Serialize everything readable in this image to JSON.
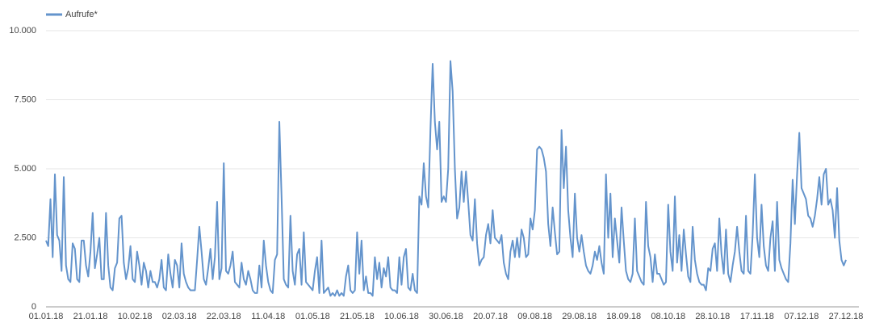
{
  "chart_data": {
    "type": "line",
    "ylim": [
      0,
      10000
    ],
    "yticks": [
      0,
      {
        "value": 2500,
        "label": "2.500"
      },
      {
        "value": 5000,
        "label": "5.000"
      },
      {
        "value": 7500,
        "label": "7.500"
      },
      {
        "value": 10000,
        "label": "10.000"
      }
    ],
    "grid": true,
    "legend": "top-left",
    "categories": [
      "01.01.18",
      null,
      null,
      null,
      null,
      null,
      null,
      null,
      null,
      null,
      null,
      null,
      null,
      null,
      null,
      null,
      null,
      null,
      null,
      null,
      "21.01.18",
      null,
      null,
      null,
      null,
      null,
      null,
      null,
      null,
      null,
      null,
      null,
      null,
      null,
      null,
      null,
      null,
      null,
      null,
      null,
      "10.02.18",
      null,
      null,
      null,
      null,
      null,
      null,
      null,
      null,
      null,
      null,
      null,
      null,
      null,
      null,
      null,
      null,
      null,
      null,
      null,
      "02.03.18",
      null,
      null,
      null,
      null,
      null,
      null,
      null,
      null,
      null,
      null,
      null,
      null,
      null,
      null,
      null,
      null,
      null,
      null,
      null,
      "22.03.18",
      null,
      null,
      null,
      null,
      null,
      null,
      null,
      null,
      null,
      null,
      null,
      null,
      null,
      null,
      null,
      null,
      null,
      null,
      null,
      "11.04.18",
      null,
      null,
      null,
      null,
      null,
      null,
      null,
      null,
      null,
      null,
      null,
      null,
      null,
      null,
      null,
      null,
      null,
      null,
      null,
      "01.05.18",
      null,
      null,
      null,
      null,
      null,
      null,
      null,
      null,
      null,
      null,
      null,
      null,
      null,
      null,
      null,
      null,
      null,
      null,
      null,
      "21.05.18",
      null,
      null,
      null,
      null,
      null,
      null,
      null,
      null,
      null,
      null,
      null,
      null,
      null,
      null,
      null,
      null,
      null,
      null,
      null,
      "10.06.18",
      null,
      null,
      null,
      null,
      null,
      null,
      null,
      null,
      null,
      null,
      null,
      null,
      null,
      null,
      null,
      null,
      null,
      null,
      null,
      "30.06.18",
      null,
      null,
      null,
      null,
      null,
      null,
      null,
      null,
      null,
      null,
      null,
      null,
      null,
      null,
      null,
      null,
      null,
      null,
      null,
      "20.07.18",
      null,
      null,
      null,
      null,
      null,
      null,
      null,
      null,
      null,
      null,
      null,
      null,
      null,
      null,
      null,
      null,
      null,
      null,
      null,
      "09.08.18",
      null,
      null,
      null,
      null,
      null,
      null,
      null,
      null,
      null,
      null,
      null,
      null,
      null,
      null,
      null,
      null,
      null,
      null,
      null,
      "29.08.18",
      null,
      null,
      null,
      null,
      null,
      null,
      null,
      null,
      null,
      null,
      null,
      null,
      null,
      null,
      null,
      null,
      null,
      null,
      null,
      "18.09.18",
      null,
      null,
      null,
      null,
      null,
      null,
      null,
      null,
      null,
      null,
      null,
      null,
      null,
      null,
      null,
      null,
      null,
      null,
      null,
      "08.10.18",
      null,
      null,
      null,
      null,
      null,
      null,
      null,
      null,
      null,
      null,
      null,
      null,
      null,
      null,
      null,
      null,
      null,
      null,
      null,
      "28.10.18",
      null,
      null,
      null,
      null,
      null,
      null,
      null,
      null,
      null,
      null,
      null,
      null,
      null,
      null,
      null,
      null,
      null,
      null,
      null,
      "17.11.18",
      null,
      null,
      null,
      null,
      null,
      null,
      null,
      null,
      null,
      null,
      null,
      null,
      null,
      null,
      null,
      null,
      null,
      null,
      null,
      "07.12.18",
      null,
      null,
      null,
      null,
      null,
      null,
      null,
      null,
      null,
      null,
      null,
      null,
      null,
      null,
      null,
      null,
      null,
      null,
      null,
      "27.12.18"
    ],
    "series": [
      {
        "name": "Aufrufe*",
        "color": "#6494cc",
        "values": [
          2400,
          2200,
          3900,
          1800,
          4800,
          2600,
          2400,
          1300,
          4700,
          1500,
          1000,
          900,
          2300,
          2100,
          1000,
          900,
          2400,
          2400,
          1500,
          1100,
          2000,
          3400,
          1400,
          1900,
          2500,
          1000,
          1000,
          3400,
          1500,
          700,
          600,
          1400,
          1600,
          3200,
          3300,
          1600,
          1000,
          1400,
          2200,
          1000,
          900,
          2000,
          1500,
          800,
          1600,
          1300,
          700,
          1300,
          900,
          900,
          700,
          1000,
          1700,
          700,
          600,
          1900,
          1200,
          700,
          1700,
          1500,
          700,
          2300,
          1200,
          900,
          700,
          600,
          600,
          600,
          1700,
          2900,
          2000,
          1000,
          800,
          1400,
          2100,
          1000,
          1800,
          3800,
          1000,
          1400,
          5200,
          1300,
          1200,
          1500,
          2000,
          900,
          800,
          700,
          1600,
          1000,
          800,
          1300,
          1000,
          600,
          500,
          500,
          1500,
          700,
          2400,
          1500,
          900,
          600,
          500,
          1700,
          1900,
          6700,
          4000,
          1000,
          800,
          700,
          3300,
          1300,
          800,
          1900,
          2100,
          800,
          2700,
          900,
          800,
          700,
          600,
          1300,
          1800,
          500,
          2400,
          500,
          600,
          700,
          400,
          500,
          400,
          600,
          400,
          500,
          400,
          1100,
          1500,
          600,
          500,
          600,
          2700,
          1200,
          2400,
          600,
          1100,
          500,
          500,
          400,
          1800,
          1000,
          1600,
          700,
          1400,
          1100,
          1800,
          700,
          600,
          600,
          500,
          1800,
          800,
          1800,
          2100,
          700,
          600,
          1200,
          600,
          500,
          4000,
          3700,
          5200,
          4000,
          3600,
          6400,
          8800,
          6700,
          5700,
          6700,
          3800,
          4000,
          3800,
          5000,
          8900,
          7800,
          5000,
          3200,
          3600,
          4900,
          3800,
          4900,
          3800,
          2600,
          2400,
          3900,
          2300,
          1500,
          1700,
          1800,
          2600,
          3000,
          2300,
          3500,
          2500,
          2400,
          2300,
          2600,
          1600,
          1200,
          1000,
          2000,
          2400,
          1800,
          2500,
          1800,
          2800,
          2500,
          1800,
          1900,
          3200,
          2800,
          3500,
          5700,
          5800,
          5700,
          5400,
          4900,
          3000,
          2200,
          3600,
          2700,
          1900,
          2000,
          6400,
          4300,
          5800,
          3500,
          2500,
          1800,
          4100,
          2500,
          2000,
          2600,
          2000,
          1500,
          1300,
          1200,
          1500,
          2000,
          1700,
          2200,
          1600,
          1200,
          4800,
          2500,
          4100,
          1800,
          3200,
          2400,
          1600,
          3600,
          2400,
          1300,
          1000,
          900,
          1200,
          3200,
          1300,
          1100,
          900,
          800,
          3800,
          2200,
          1800,
          900,
          1900,
          1200,
          1200,
          1000,
          800,
          900,
          3700,
          2000,
          1300,
          4000,
          1600,
          2600,
          1300,
          2800,
          1900,
          1100,
          900,
          2900,
          1700,
          1200,
          900,
          800,
          800,
          600,
          1400,
          1300,
          2100,
          2300,
          1300,
          3200,
          1900,
          1200,
          2800,
          1200,
          900,
          1500,
          2000,
          2900,
          2000,
          1300,
          1200,
          3300,
          1300,
          1200,
          2600,
          4800,
          2500,
          1800,
          3700,
          2200,
          1500,
          1300,
          2500,
          3100,
          1300,
          3800,
          1700,
          1400,
          1200,
          1000,
          900,
          2300,
          4600,
          3000,
          4800,
          6300,
          4300,
          4100,
          3900,
          3300,
          3200,
          2900,
          3300,
          3900,
          4700,
          3700,
          4800,
          5000,
          3700,
          3900,
          3500,
          2500,
          4300,
          2400,
          1700,
          1500,
          1700
        ]
      }
    ]
  }
}
